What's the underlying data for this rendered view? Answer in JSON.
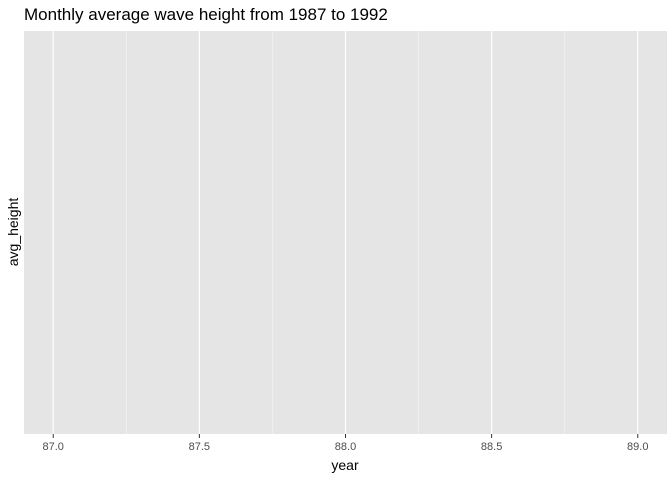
{
  "chart_data": {
    "type": "scatter",
    "title": "Monthly average wave height from 1987 to 1992",
    "xlabel": "year",
    "ylabel": "avg_height",
    "xlim": [
      86.9,
      89.1
    ],
    "x_ticks": [
      87.0,
      87.5,
      88.0,
      88.5,
      89.0
    ],
    "x_tick_labels": [
      "87.0",
      "87.5",
      "88.0",
      "88.5",
      "89.0"
    ],
    "x_minor_ticks": [
      87.25,
      87.75,
      88.25,
      88.75
    ],
    "y_ticks": [],
    "series": [],
    "grid": true,
    "legend": "none",
    "colors": {
      "panel_background": "#e5e5e5",
      "grid_major": "#ffffff",
      "grid_minor": "#f2f2f2",
      "tick_label": "#4d4d4d",
      "text": "#000000"
    }
  }
}
